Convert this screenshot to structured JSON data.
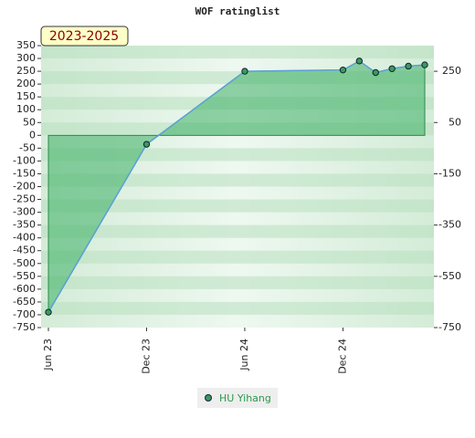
{
  "chart_data": {
    "type": "area",
    "title": "WOF ratinglist",
    "badge": "2023-2025",
    "x": [
      "2023-06",
      "2023-12",
      "2024-06",
      "2024-12",
      "2025-01",
      "2025-02",
      "2025-03",
      "2025-04",
      "2025-05"
    ],
    "series": [
      {
        "name": "HU Yihang",
        "color": "#5aa0d8",
        "values": [
          -690,
          -35,
          250,
          255,
          290,
          245,
          260,
          270,
          275
        ]
      }
    ],
    "xticks": [
      {
        "value": "2023-06",
        "label": "Jun 23"
      },
      {
        "value": "2023-12",
        "label": "Dec 23"
      },
      {
        "value": "2024-06",
        "label": "Jun 24"
      },
      {
        "value": "2024-12",
        "label": "Dec 24"
      }
    ],
    "ylim": [
      -750,
      350
    ],
    "yticks": [
      350,
      300,
      250,
      200,
      150,
      100,
      50,
      0,
      -50,
      -100,
      -150,
      -200,
      -250,
      -300,
      -350,
      -400,
      -450,
      -500,
      -550,
      -600,
      -650,
      -700,
      -750
    ],
    "y2lim": [
      -750,
      350
    ],
    "y2ticks": [
      250,
      50,
      -150,
      -350,
      -550,
      -750
    ],
    "grid": true
  }
}
